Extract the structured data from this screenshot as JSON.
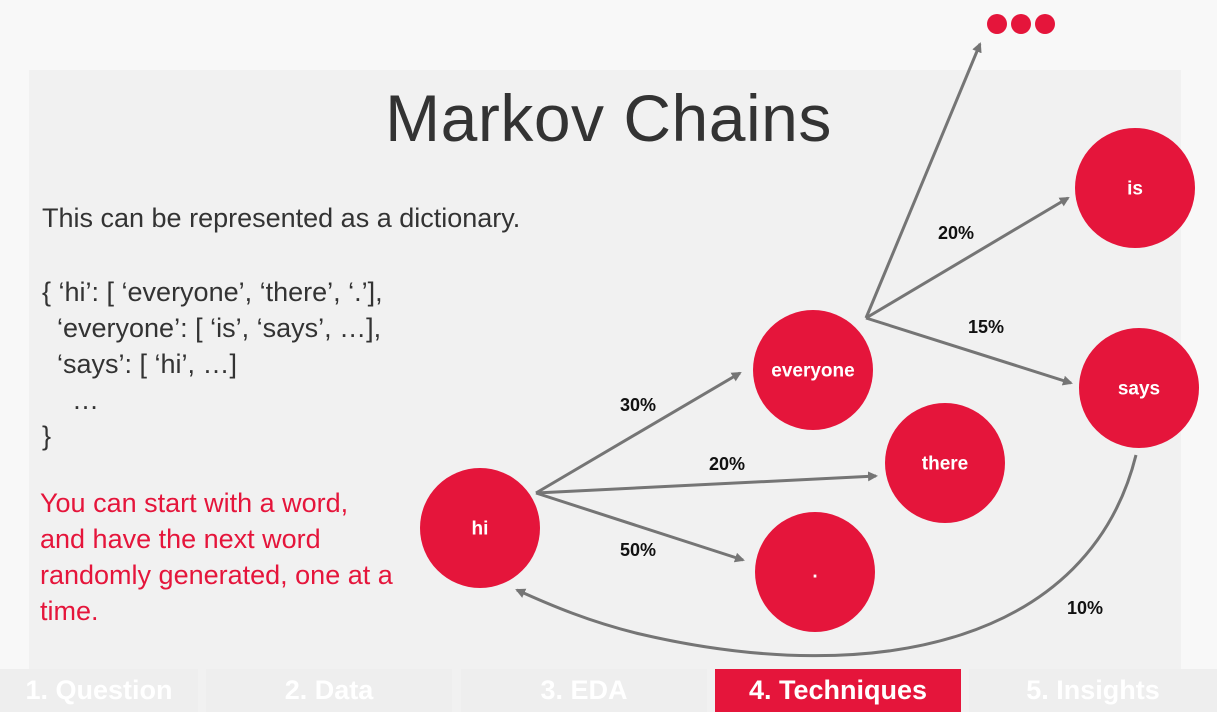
{
  "title": "Markov Chains",
  "intro": "This can be represented as a dictionary.",
  "dict_lines": [
    "{ ‘hi’: [ ‘everyone’, ‘there’, ‘.’],",
    "  ‘everyone’: [ ‘is’, ‘says’, …],",
    "  ‘says’: [ ‘hi’, …]",
    "    …",
    "}"
  ],
  "note": "You can start with a word, and have the next word randomly generated, one at a time.",
  "colors": {
    "node": "#e5153b",
    "accent": "#e5153b",
    "arrow": "#757575",
    "text": "#333333"
  },
  "nodes": {
    "hi": "hi",
    "everyone": "everyone",
    "there": "there",
    "period": ".",
    "is": "is",
    "says": "says",
    "more": "•••"
  },
  "edges": {
    "hi_everyone": "30%",
    "hi_there": "20%",
    "hi_period": "50%",
    "everyone_more": "20%",
    "everyone_says": "15%",
    "says_hi": "10%"
  },
  "tabs": [
    {
      "label": "1. Question",
      "active": false
    },
    {
      "label": "2. Data",
      "active": false
    },
    {
      "label": "3. EDA",
      "active": false
    },
    {
      "label": "4. Techniques",
      "active": true
    },
    {
      "label": "5. Insights",
      "active": false
    }
  ]
}
